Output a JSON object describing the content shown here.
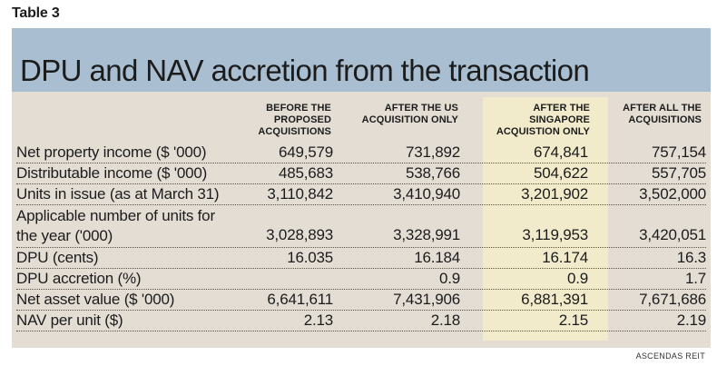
{
  "table_label": "Table 3",
  "title": "DPU and NAV accretion from the transaction",
  "columns": [
    "BEFORE THE PROPOSED ACQUISITIONS",
    "AFTER THE US ACQUISITION ONLY",
    "AFTER THE SINGAPORE ACQUISTION ONLY",
    "AFTER ALL THE ACQUISITIONS"
  ],
  "rows": [
    {
      "label": "Net property income ($ '000)",
      "values": [
        "649,579",
        "731,892",
        "674,841",
        "757,154"
      ]
    },
    {
      "label": "Distributable income ($ '000)",
      "values": [
        "485,683",
        "538,766",
        "504,622",
        "557,705"
      ]
    },
    {
      "label": "Units in issue (as at March 31)",
      "values": [
        "3,110,842",
        "3,410,940",
        "3,201,902",
        "3,502,000"
      ]
    },
    {
      "label": "Applicable number of units for the year ('000)",
      "values": [
        "3,028,893",
        "3,328,991",
        "3,119,953",
        "3,420,051"
      ]
    },
    {
      "label": "DPU (cents)",
      "values": [
        "16.035",
        "16.184",
        "16.174",
        "16.3"
      ]
    },
    {
      "label": "DPU accretion (%)",
      "values": [
        "",
        "0.9",
        "0.9",
        "1.7"
      ]
    },
    {
      "label": "Net asset value ($ '000)",
      "values": [
        "6,641,611",
        "7,431,906",
        "6,881,391",
        "7,671,686"
      ]
    },
    {
      "label": "NAV per unit ($)",
      "values": [
        "2.13",
        "2.18",
        "2.15",
        "2.19"
      ]
    }
  ],
  "source": "ASCENDAS REIT",
  "colors": {
    "title_band": "#a9bfd1",
    "panel": "#e4ddd4",
    "highlight_column": "#f1ebcc"
  }
}
